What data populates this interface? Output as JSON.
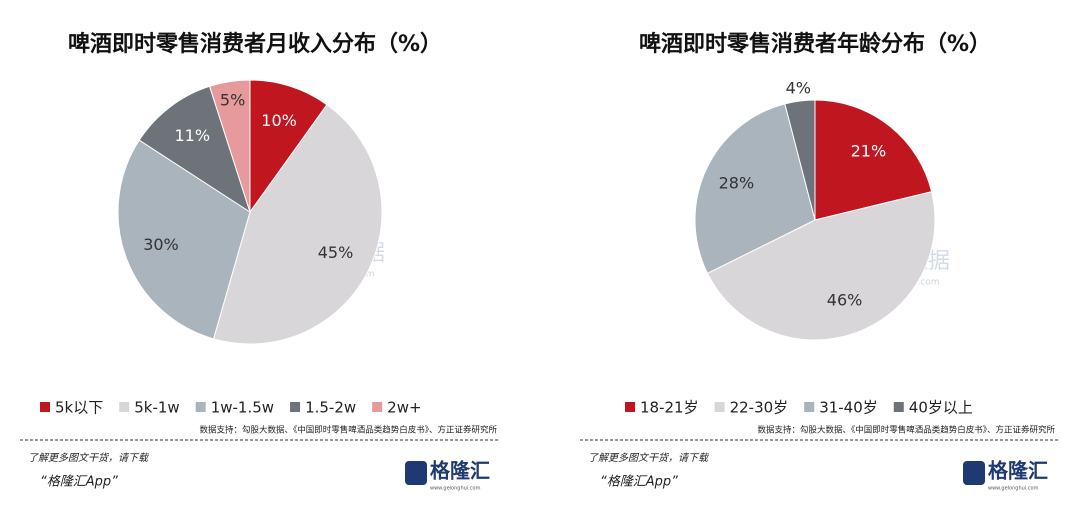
{
  "chart_data": [
    {
      "type": "pie",
      "title": "啤酒即时零售消费者月收入分布（%）",
      "categories": [
        "5k以下",
        "5k-1w",
        "1w-1.5w",
        "1.5-2w",
        "2w+"
      ],
      "values": [
        10,
        45,
        30,
        11,
        5
      ],
      "value_labels": [
        "10%",
        "45%",
        "30%",
        "11%",
        "5%"
      ],
      "colors": [
        "#c0161f",
        "#d9d6da",
        "#aab4bc",
        "#6d7378",
        "#e79a9c"
      ],
      "legend": "bottom",
      "source": "数据支持：勾股大数据、《中国即时零售啤酒品类趋势白皮书》、方正证券研究所"
    },
    {
      "type": "pie",
      "title": "啤酒即时零售消费者年龄分布（%）",
      "categories": [
        "18-21岁",
        "22-30岁",
        "31-40岁",
        "40岁以上"
      ],
      "values": [
        21,
        46,
        28,
        4
      ],
      "value_labels": [
        "21%",
        "46%",
        "28%",
        "4%"
      ],
      "colors": [
        "#c0161f",
        "#d9d6da",
        "#aab4bc",
        "#6d7378"
      ],
      "legend": "bottom",
      "source": "数据支持：勾股大数据、《中国即时零售啤酒品类趋势白皮书》、方正证券研究所"
    }
  ],
  "watermark": [
    "格隆汇",
    "勾股大数据",
    "www.gogudata.com"
  ],
  "footer": {
    "note": "了解更多图文干货，请下载",
    "app": "“格隆汇App”",
    "logo": "格隆汇",
    "logo_url": "www.gelonghui.com"
  }
}
